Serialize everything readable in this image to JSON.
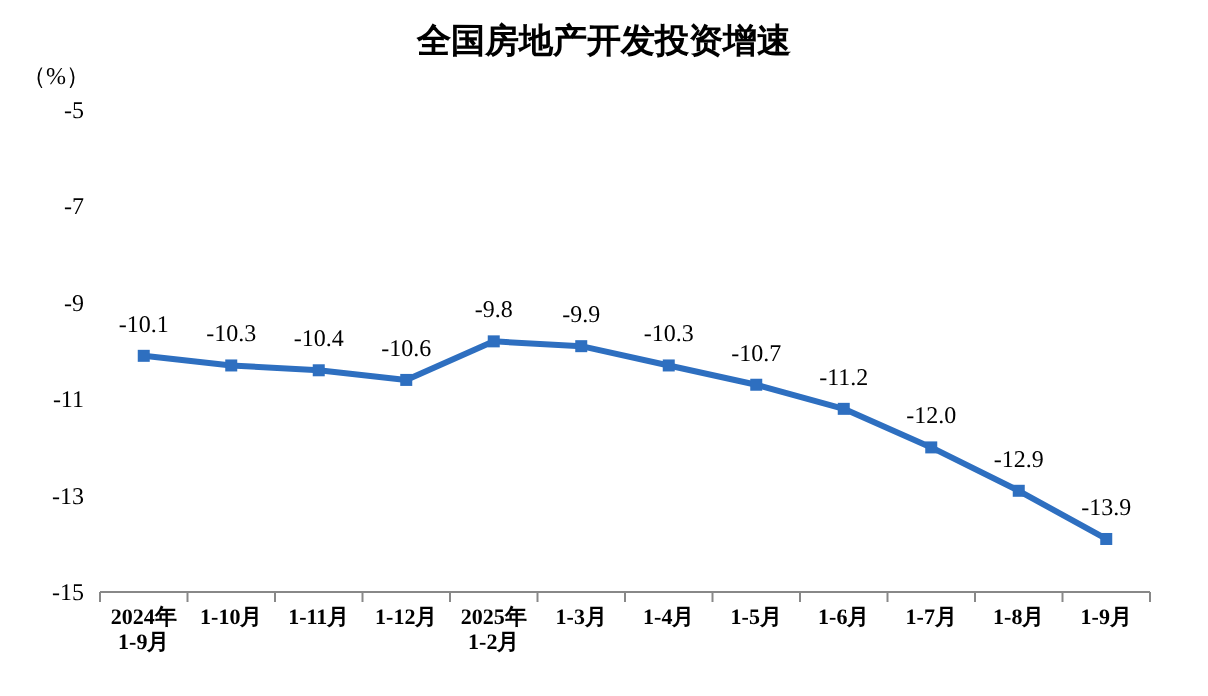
{
  "chart_data": {
    "type": "line",
    "title": "全国房地产开发投资增速",
    "ylabel": "（%）",
    "categories": [
      "2024年\n1-9月",
      "1-10月",
      "1-11月",
      "1-12月",
      "2025年\n1-2月",
      "1-3月",
      "1-4月",
      "1-5月",
      "1-6月",
      "1-7月",
      "1-8月",
      "1-9月"
    ],
    "series": [
      {
        "color": "#2e6fc0",
        "values": [
          -10.1,
          -10.3,
          -10.4,
          -10.6,
          -9.8,
          -9.9,
          -10.3,
          -10.7,
          -11.2,
          -12.0,
          -12.9,
          -13.9
        ],
        "value_labels": [
          "-10.1",
          "-10.3",
          "-10.4",
          "-10.6",
          "-9.8",
          "-9.9",
          "-10.3",
          "-10.7",
          "-11.2",
          "-12.0",
          "-12.9",
          "-13.9"
        ]
      }
    ],
    "ylim": [
      -15,
      -5
    ],
    "yticks": [
      -5,
      -7,
      -9,
      -11,
      -13,
      -15
    ],
    "marker": "square",
    "line_style": "solid"
  }
}
